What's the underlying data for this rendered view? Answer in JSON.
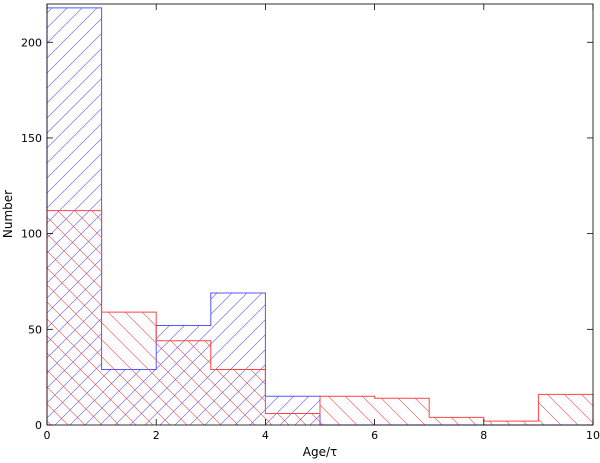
{
  "chart_data": {
    "type": "bar",
    "subtype": "step-histogram",
    "xlabel": "Age/τ",
    "ylabel": "Number",
    "xlim": [
      0,
      10
    ],
    "ylim": [
      0,
      220
    ],
    "xticks": [
      0,
      2,
      4,
      6,
      8,
      10
    ],
    "yticks": [
      0,
      50,
      100,
      150,
      200
    ],
    "bin_edges": [
      0,
      1,
      2,
      3,
      4,
      5,
      6,
      7,
      8,
      9,
      10
    ],
    "series": [
      {
        "color": "#5555ff",
        "hatch": "forward-diagonal",
        "values": [
          218,
          29,
          52,
          69,
          15,
          0,
          0,
          0,
          0,
          0
        ]
      },
      {
        "color": "#ff4444",
        "hatch": "backward-diagonal",
        "values": [
          112,
          59,
          44,
          29,
          6,
          15,
          14,
          4,
          2,
          16
        ]
      }
    ],
    "grid": false,
    "legend": "none"
  }
}
